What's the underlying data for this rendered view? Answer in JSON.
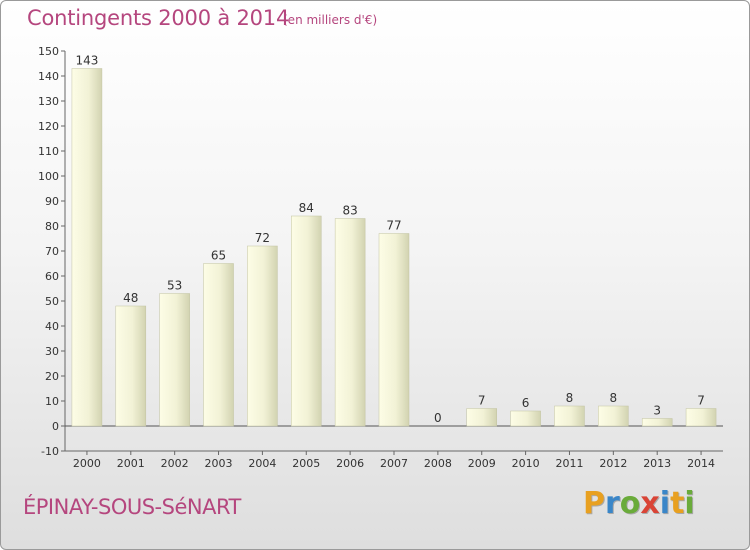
{
  "header": {
    "title": "Contingents 2000 à 2014",
    "subtitle": "(en milliers d'€)"
  },
  "footer": {
    "place": "ÉPINAY-SOUS-SéNART",
    "logo_text": "Proxiti"
  },
  "colors": {
    "title": "#b5467e",
    "bar_light": "#fdfde6",
    "bar_dark": "#d2d3b1",
    "background": "#ececec"
  },
  "chart_data": {
    "type": "bar",
    "title": "Contingents 2000 à 2014",
    "subtitle": "(en milliers d'€)",
    "xlabel": "",
    "ylabel": "",
    "categories": [
      "2000",
      "2001",
      "2002",
      "2003",
      "2004",
      "2005",
      "2006",
      "2007",
      "2008",
      "2009",
      "2010",
      "2011",
      "2012",
      "2013",
      "2014"
    ],
    "values": [
      143,
      48,
      53,
      65,
      72,
      84,
      83,
      77,
      0,
      7,
      6,
      8,
      8,
      3,
      7
    ],
    "ylim": [
      -10,
      150
    ],
    "yticks": [
      -10,
      0,
      10,
      20,
      30,
      40,
      50,
      60,
      70,
      80,
      90,
      100,
      110,
      120,
      130,
      140,
      150
    ],
    "grid": false,
    "legend": "none"
  }
}
